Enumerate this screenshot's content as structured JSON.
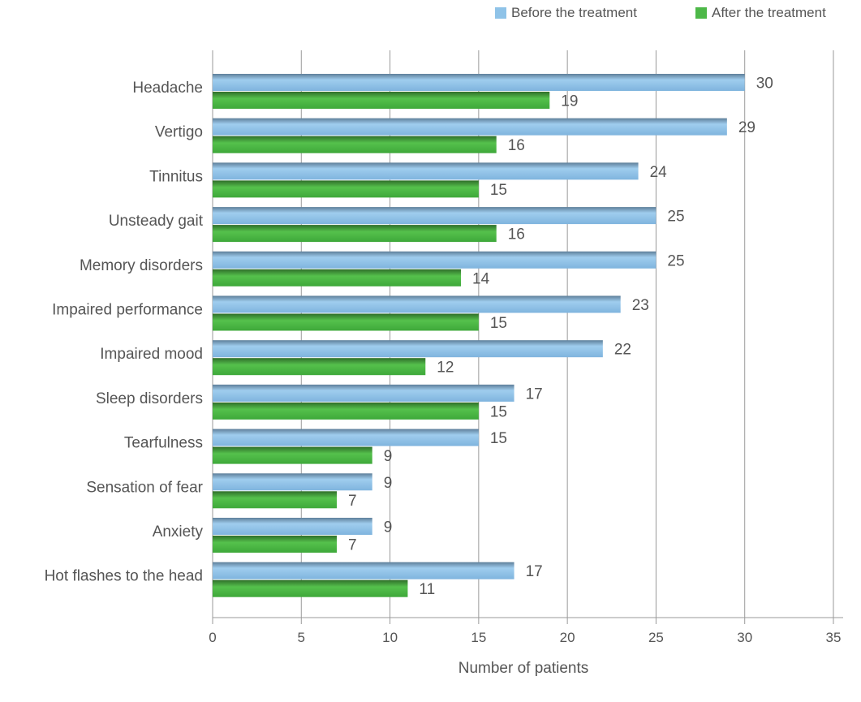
{
  "chart_data": {
    "type": "bar",
    "orientation": "horizontal",
    "categories": [
      "Headache",
      "Vertigo",
      "Tinnitus",
      "Unsteady gait",
      "Memory disorders",
      "Impaired performance",
      "Impaired mood",
      "Sleep disorders",
      "Tearfulness",
      "Sensation of fear",
      "Anxiety",
      "Hot flashes to the head"
    ],
    "series": [
      {
        "name": "Before the treatment",
        "color": "#8fc3e8",
        "values": [
          30,
          29,
          24,
          25,
          25,
          23,
          22,
          17,
          15,
          9,
          9,
          17
        ]
      },
      {
        "name": "After the treatment",
        "color": "#4db848",
        "values": [
          19,
          16,
          15,
          16,
          14,
          15,
          12,
          15,
          9,
          7,
          7,
          11
        ]
      }
    ],
    "xlabel": "Number of patients",
    "ylabel": "",
    "xlim": [
      0,
      35
    ],
    "xticks": [
      0,
      5,
      10,
      15,
      20,
      25,
      30,
      35
    ],
    "grid": true,
    "legend": "top-right"
  }
}
